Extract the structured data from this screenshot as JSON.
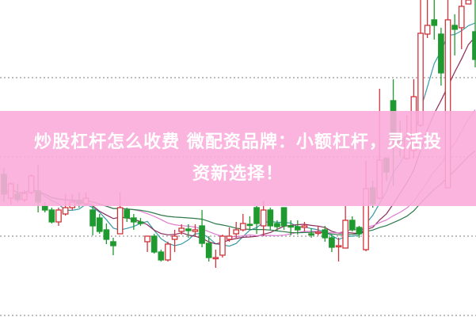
{
  "banner": {
    "title_line1": "炒股杠杆怎么收费 微配资品牌：小额杠杆，灵活投",
    "title_line2": "资新选择！",
    "color": "#faacda"
  },
  "chart_data": {
    "type": "candlestick",
    "grid": "horizontal dotted",
    "ylim": [
      0,
      4
    ],
    "gridlines": [
      0,
      1,
      2,
      3
    ],
    "colors": {
      "up": "#d0343c",
      "down": "#1f9a30",
      "grid": "#999999"
    },
    "moving_averages": [
      {
        "period": 5,
        "color": "#3a9aa8"
      },
      {
        "period": 10,
        "color": "#8a2a5a"
      },
      {
        "period": 20,
        "color": "#e07ad0"
      },
      {
        "period": 30,
        "color": "#2e7a4a"
      }
    ],
    "candles_ohlc": [
      [
        1.8,
        1.88,
        1.45,
        1.55
      ],
      [
        1.5,
        1.7,
        1.42,
        1.68
      ],
      [
        1.55,
        1.68,
        1.45,
        1.48
      ],
      [
        1.48,
        1.6,
        1.45,
        1.56
      ],
      [
        1.57,
        1.8,
        1.55,
        1.78
      ],
      [
        1.59,
        1.92,
        1.32,
        1.45
      ],
      [
        1.4,
        1.45,
        1.32,
        1.35
      ],
      [
        1.35,
        1.38,
        1.18,
        1.2
      ],
      [
        1.2,
        1.38,
        1.15,
        1.35
      ],
      [
        1.3,
        1.55,
        1.28,
        1.38
      ],
      [
        1.38,
        1.55,
        1.35,
        1.45
      ],
      [
        1.46,
        1.57,
        1.38,
        1.43
      ],
      [
        1.43,
        1.57,
        1.4,
        1.5
      ],
      [
        1.35,
        1.4,
        1.03,
        1.15
      ],
      [
        1.25,
        1.3,
        1.05,
        1.08
      ],
      [
        1.1,
        1.18,
        0.92,
        0.98
      ],
      [
        0.95,
        1.0,
        0.78,
        0.9
      ],
      [
        1.05,
        1.57,
        1.05,
        1.38
      ],
      [
        1.35,
        1.38,
        1.2,
        1.25
      ],
      [
        1.25,
        1.3,
        1.1,
        1.2
      ],
      [
        1.2,
        1.25,
        1.15,
        1.18
      ],
      [
        0.95,
        1.02,
        0.82,
        1.02
      ],
      [
        1.02,
        1.05,
        0.8,
        0.82
      ],
      [
        0.82,
        0.85,
        0.7,
        0.72
      ],
      [
        0.72,
        0.95,
        0.7,
        0.92
      ],
      [
        0.98,
        1.1,
        0.82,
        1.02
      ],
      [
        1.08,
        1.17,
        1.04,
        1.12
      ],
      [
        1.11,
        1.17,
        1.0,
        1.09
      ],
      [
        1.08,
        1.17,
        1.02,
        1.1
      ],
      [
        1.15,
        1.35,
        0.88,
        0.93
      ],
      [
        0.93,
        1.02,
        0.7,
        0.75
      ],
      [
        0.75,
        0.85,
        0.62,
        0.75
      ],
      [
        0.78,
        1.04,
        0.75,
        1.02
      ],
      [
        0.98,
        1.13,
        0.95,
        1.02
      ],
      [
        1.05,
        1.2,
        1.0,
        1.1
      ],
      [
        1.1,
        1.3,
        1.08,
        1.18
      ],
      [
        1.17,
        1.27,
        1.1,
        1.16
      ],
      [
        1.38,
        1.4,
        1.05,
        1.18
      ],
      [
        1.15,
        1.47,
        1.02,
        1.35
      ],
      [
        1.35,
        1.38,
        1.1,
        1.15
      ],
      [
        1.18,
        1.22,
        1.08,
        1.14
      ],
      [
        1.38,
        1.38,
        1.1,
        1.15
      ],
      [
        1.15,
        1.22,
        1.03,
        1.14
      ],
      [
        1.14,
        1.22,
        1.04,
        1.1
      ],
      [
        1.13,
        1.2,
        1.08,
        1.15
      ],
      [
        1.05,
        1.12,
        1.0,
        1.04
      ],
      [
        1.07,
        1.15,
        1.03,
        1.07
      ],
      [
        1.1,
        1.15,
        0.95,
        1.0
      ],
      [
        1.0,
        1.05,
        0.82,
        0.88
      ],
      [
        0.9,
        1.0,
        0.7,
        0.9
      ],
      [
        0.87,
        1.4,
        0.87,
        1.22
      ],
      [
        1.22,
        1.27,
        1.08,
        1.1
      ],
      [
        1.13,
        1.15,
        1.0,
        1.05
      ],
      [
        0.85,
        1.97,
        0.83,
        1.62
      ],
      [
        1.63,
        1.72,
        1.38,
        1.43
      ],
      [
        1.5,
        2.88,
        1.48,
        1.98
      ],
      [
        2.0,
        2.02,
        1.72,
        1.83
      ],
      [
        2.73,
        3.0,
        1.65,
        2.25
      ],
      [
        2.25,
        2.48,
        2.03,
        2.2
      ],
      [
        2.0,
        2.55,
        1.98,
        2.27
      ],
      [
        2.1,
        3.0,
        2.0,
        2.78
      ],
      [
        2.42,
        4.0,
        2.4,
        3.58
      ],
      [
        3.57,
        4.0,
        3.52,
        3.68
      ],
      [
        3.75,
        4.0,
        3.5,
        3.68
      ],
      [
        3.57,
        3.65,
        2.92,
        3.08
      ],
      [
        1.63,
        4.0,
        1.63,
        3.75
      ],
      [
        3.68,
        3.82,
        3.3,
        3.63
      ],
      [
        3.65,
        4.0,
        3.38,
        3.92
      ],
      [
        3.95,
        4.0,
        3.95,
        4.0
      ],
      [
        3.6,
        4.0,
        3.15,
        3.25
      ]
    ]
  }
}
